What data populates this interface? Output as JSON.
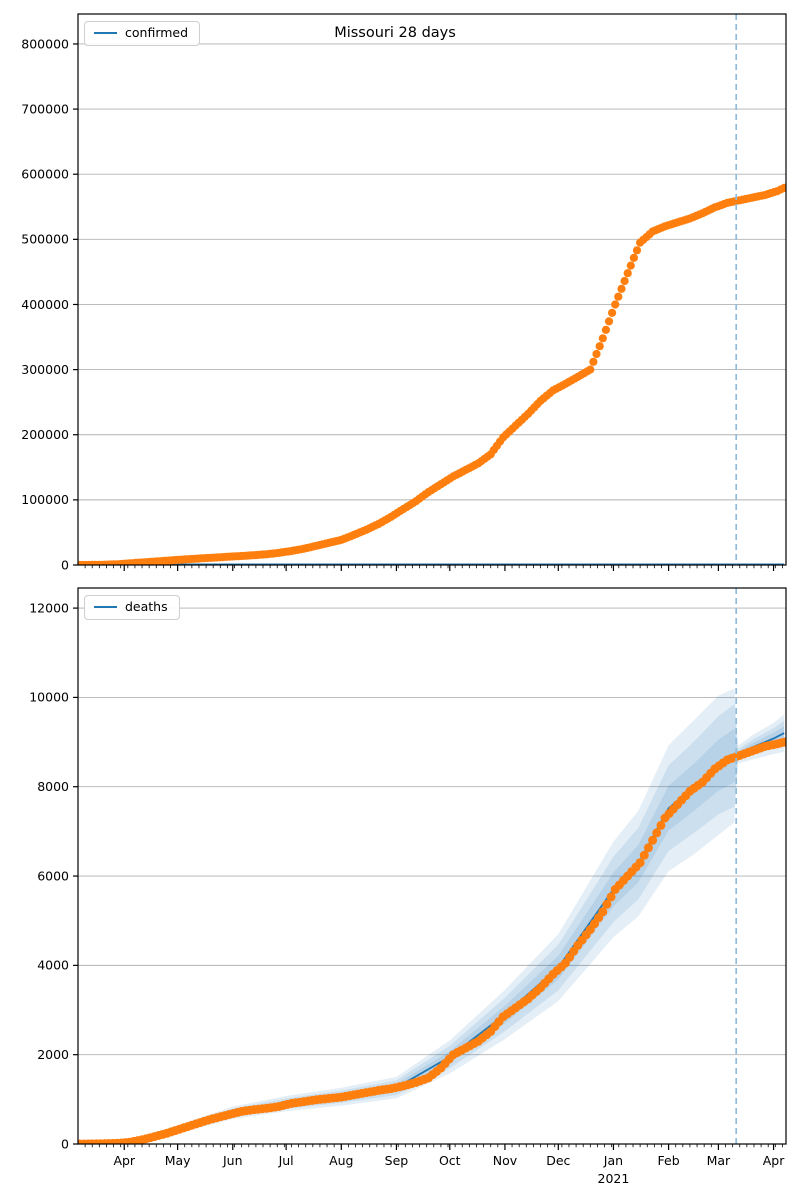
{
  "figure": {
    "title": "Missouri 28 days"
  },
  "style": {
    "observed_color": "#ff7f0e",
    "model_color": "#1f77b4",
    "band_color": "rgba(31,119,180,0.12)",
    "vline_color": "#8fbcdb",
    "grid_color": "#b2b2b2",
    "axis_color": "#000000"
  },
  "x_axis": {
    "start": "2020-03-06",
    "end": "2021-04-08",
    "minor_tick_interval_days": 4,
    "month_ticks": [
      {
        "label": "Apr",
        "date": "2020-04-01"
      },
      {
        "label": "May",
        "date": "2020-05-01"
      },
      {
        "label": "Jun",
        "date": "2020-06-01"
      },
      {
        "label": "Jul",
        "date": "2020-07-01"
      },
      {
        "label": "Aug",
        "date": "2020-08-01"
      },
      {
        "label": "Sep",
        "date": "2020-09-01"
      },
      {
        "label": "Oct",
        "date": "2020-10-01"
      },
      {
        "label": "Nov",
        "date": "2020-11-01"
      },
      {
        "label": "Dec",
        "date": "2020-12-01"
      },
      {
        "label": "Jan",
        "date": "2021-01-01"
      },
      {
        "label": "Feb",
        "date": "2021-02-01"
      },
      {
        "label": "Mar",
        "date": "2021-03-01"
      },
      {
        "label": "Apr",
        "date": "2021-04-01"
      }
    ],
    "year_annotation": {
      "label": "2021",
      "date": "2021-01-01"
    }
  },
  "chart_data": [
    {
      "id": "confirmed",
      "type": "scatter",
      "title": "Missouri 28 days",
      "legend": "confirmed",
      "legend_position": "upper left",
      "grid": true,
      "ylim": [
        0,
        846000
      ],
      "yticks": [
        0,
        100000,
        200000,
        300000,
        400000,
        500000,
        600000,
        700000,
        800000
      ],
      "vline_date": "2021-03-11",
      "observed": [
        [
          "2020-03-07",
          0
        ],
        [
          "2020-03-14",
          100
        ],
        [
          "2020-03-21",
          400
        ],
        [
          "2020-03-28",
          1000
        ],
        [
          "2020-04-04",
          2500
        ],
        [
          "2020-04-11",
          3800
        ],
        [
          "2020-04-18",
          5200
        ],
        [
          "2020-04-25",
          6600
        ],
        [
          "2020-05-02",
          8000
        ],
        [
          "2020-05-09",
          9200
        ],
        [
          "2020-05-16",
          10400
        ],
        [
          "2020-05-23",
          11500
        ],
        [
          "2020-05-30",
          12800
        ],
        [
          "2020-06-06",
          13800
        ],
        [
          "2020-06-13",
          15000
        ],
        [
          "2020-06-20",
          16500
        ],
        [
          "2020-06-27",
          18600
        ],
        [
          "2020-07-04",
          21500
        ],
        [
          "2020-07-11",
          25000
        ],
        [
          "2020-07-18",
          29500
        ],
        [
          "2020-07-25",
          34000
        ],
        [
          "2020-08-01",
          38500
        ],
        [
          "2020-08-08",
          46000
        ],
        [
          "2020-08-15",
          54000
        ],
        [
          "2020-08-22",
          63000
        ],
        [
          "2020-08-29",
          74000
        ],
        [
          "2020-09-05",
          86000
        ],
        [
          "2020-09-12",
          98000
        ],
        [
          "2020-09-19",
          112000
        ],
        [
          "2020-09-26",
          124000
        ],
        [
          "2020-10-03",
          136000
        ],
        [
          "2020-10-10",
          146000
        ],
        [
          "2020-10-17",
          156000
        ],
        [
          "2020-10-24",
          170000
        ],
        [
          "2020-10-31",
          196000
        ],
        [
          "2020-11-07",
          214000
        ],
        [
          "2020-11-14",
          232000
        ],
        [
          "2020-11-21",
          252000
        ],
        [
          "2020-11-28",
          268000
        ],
        [
          "2020-12-05",
          278000
        ],
        [
          "2020-12-12",
          289000
        ],
        [
          "2020-12-19",
          300000
        ],
        [
          "2020-12-26",
          348000
        ],
        [
          "2021-01-02",
          400000
        ],
        [
          "2021-01-09",
          448000
        ],
        [
          "2021-01-16",
          495000
        ],
        [
          "2021-01-23",
          512000
        ],
        [
          "2021-01-30",
          520000
        ],
        [
          "2021-02-06",
          526000
        ],
        [
          "2021-02-13",
          532000
        ],
        [
          "2021-02-20",
          540000
        ],
        [
          "2021-02-27",
          549000
        ],
        [
          "2021-03-06",
          556000
        ],
        [
          "2021-03-13",
          560000
        ],
        [
          "2021-03-20",
          564000
        ],
        [
          "2021-03-27",
          568000
        ],
        [
          "2021-04-03",
          574000
        ],
        [
          "2021-04-07",
          579000
        ]
      ],
      "model": [
        [
          "2020-03-07",
          900
        ],
        [
          "2021-04-07",
          900
        ]
      ]
    },
    {
      "id": "deaths",
      "type": "scatter",
      "legend": "deaths",
      "legend_position": "upper left",
      "grid": true,
      "ylim": [
        0,
        12450
      ],
      "yticks": [
        0,
        2000,
        4000,
        6000,
        8000,
        10000,
        12000
      ],
      "vline_date": "2021-03-11",
      "observed": [
        [
          "2020-03-07",
          0
        ],
        [
          "2020-03-14",
          2
        ],
        [
          "2020-03-21",
          8
        ],
        [
          "2020-03-28",
          15
        ],
        [
          "2020-04-04",
          40
        ],
        [
          "2020-04-11",
          95
        ],
        [
          "2020-04-18",
          165
        ],
        [
          "2020-04-25",
          240
        ],
        [
          "2020-05-02",
          330
        ],
        [
          "2020-05-09",
          420
        ],
        [
          "2020-05-16",
          510
        ],
        [
          "2020-05-23",
          590
        ],
        [
          "2020-05-30",
          660
        ],
        [
          "2020-06-06",
          730
        ],
        [
          "2020-06-13",
          770
        ],
        [
          "2020-06-20",
          800
        ],
        [
          "2020-06-27",
          840
        ],
        [
          "2020-07-04",
          910
        ],
        [
          "2020-07-11",
          950
        ],
        [
          "2020-07-18",
          990
        ],
        [
          "2020-07-25",
          1020
        ],
        [
          "2020-08-01",
          1050
        ],
        [
          "2020-08-08",
          1100
        ],
        [
          "2020-08-15",
          1150
        ],
        [
          "2020-08-22",
          1200
        ],
        [
          "2020-08-29",
          1240
        ],
        [
          "2020-09-05",
          1300
        ],
        [
          "2020-09-12",
          1380
        ],
        [
          "2020-09-19",
          1480
        ],
        [
          "2020-09-26",
          1700
        ],
        [
          "2020-10-03",
          2000
        ],
        [
          "2020-10-10",
          2150
        ],
        [
          "2020-10-17",
          2300
        ],
        [
          "2020-10-24",
          2520
        ],
        [
          "2020-10-31",
          2850
        ],
        [
          "2020-11-07",
          3050
        ],
        [
          "2020-11-14",
          3250
        ],
        [
          "2020-11-21",
          3500
        ],
        [
          "2020-11-28",
          3800
        ],
        [
          "2020-12-05",
          4050
        ],
        [
          "2020-12-12",
          4450
        ],
        [
          "2020-12-19",
          4800
        ],
        [
          "2020-12-26",
          5200
        ],
        [
          "2021-01-02",
          5700
        ],
        [
          "2021-01-09",
          6000
        ],
        [
          "2021-01-16",
          6300
        ],
        [
          "2021-01-23",
          6800
        ],
        [
          "2021-01-30",
          7300
        ],
        [
          "2021-02-06",
          7600
        ],
        [
          "2021-02-13",
          7900
        ],
        [
          "2021-02-20",
          8100
        ],
        [
          "2021-02-27",
          8400
        ],
        [
          "2021-03-06",
          8600
        ],
        [
          "2021-03-13",
          8700
        ],
        [
          "2021-03-20",
          8800
        ],
        [
          "2021-03-27",
          8900
        ],
        [
          "2021-04-03",
          8960
        ],
        [
          "2021-04-07",
          9000
        ]
      ],
      "model": [
        [
          "2020-03-07",
          0
        ],
        [
          "2020-04-01",
          30
        ],
        [
          "2020-05-01",
          330
        ],
        [
          "2020-06-01",
          700
        ],
        [
          "2020-07-01",
          905
        ],
        [
          "2020-08-01",
          1060
        ],
        [
          "2020-09-01",
          1260
        ],
        [
          "2020-10-01",
          1950
        ],
        [
          "2020-11-01",
          2900
        ],
        [
          "2020-12-01",
          3950
        ],
        [
          "2021-01-01",
          5700
        ],
        [
          "2021-01-15",
          6280
        ],
        [
          "2021-02-01",
          7520
        ],
        [
          "2021-02-15",
          7980
        ],
        [
          "2021-03-01",
          8480
        ],
        [
          "2021-03-10",
          8700
        ],
        [
          "2021-03-12",
          8720
        ],
        [
          "2021-03-20",
          8880
        ],
        [
          "2021-04-01",
          9080
        ],
        [
          "2021-04-07",
          9200
        ]
      ],
      "bands": {
        "dates": [
          "2020-03-07",
          "2020-04-01",
          "2020-05-01",
          "2020-06-01",
          "2020-07-01",
          "2020-08-01",
          "2020-09-01",
          "2020-10-01",
          "2020-11-01",
          "2020-12-01",
          "2021-01-01",
          "2021-01-15",
          "2021-02-01",
          "2021-02-15",
          "2021-03-01",
          "2021-03-10",
          "2021-03-12",
          "2021-03-20",
          "2021-04-01",
          "2021-04-07"
        ],
        "inner_lo": [
          0,
          22,
          300,
          650,
          845,
          990,
          1175,
          1820,
          2705,
          3685,
          5320,
          5860,
          7020,
          7450,
          7910,
          8100,
          8660,
          8785,
          8950,
          9050
        ],
        "inner_hi": [
          0,
          38,
          360,
          750,
          965,
          1130,
          1345,
          2080,
          3095,
          4215,
          6080,
          6700,
          8020,
          8510,
          9050,
          9300,
          8780,
          8975,
          9210,
          9350
        ],
        "mid_lo": [
          0,
          15,
          270,
          605,
          790,
          925,
          1095,
          1700,
          2525,
          3440,
          4970,
          5480,
          6560,
          6960,
          7380,
          7550,
          8600,
          8710,
          8850,
          8920
        ],
        "mid_hi": [
          0,
          45,
          390,
          795,
          1020,
          1195,
          1425,
          2200,
          3275,
          4460,
          6430,
          7080,
          8480,
          9000,
          9580,
          9850,
          8840,
          9050,
          9310,
          9480
        ],
        "outer_lo": [
          0,
          5,
          240,
          560,
          735,
          860,
          1020,
          1580,
          2350,
          3200,
          4630,
          5100,
          6110,
          6480,
          6920,
          7200,
          8520,
          8610,
          8730,
          8780
        ],
        "outer_hi": [
          0,
          55,
          420,
          840,
          1075,
          1260,
          1500,
          2320,
          3450,
          4700,
          6770,
          7460,
          8930,
          9480,
          10040,
          10200,
          8920,
          9150,
          9430,
          9620
        ]
      }
    }
  ]
}
